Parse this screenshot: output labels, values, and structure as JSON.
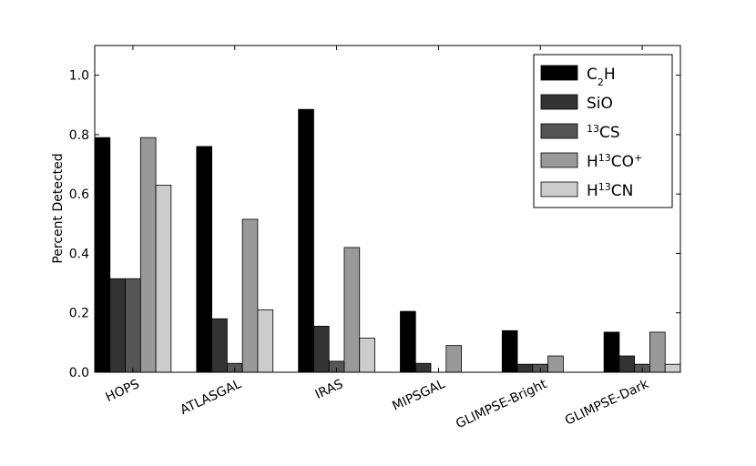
{
  "chart_data": {
    "type": "bar",
    "title": "",
    "xlabel": "",
    "ylabel": "Percent Detected",
    "ylim": [
      0,
      1.1
    ],
    "yticks": [
      0.0,
      0.2,
      0.4,
      0.6,
      0.8,
      1.0
    ],
    "ytick_labels": [
      "0.0",
      "0.2",
      "0.4",
      "0.6",
      "0.8",
      "1.0"
    ],
    "grid": false,
    "legend": "top-right",
    "categories": [
      "HOPS",
      "ATLASGAL",
      "IRAS",
      "MIPSGAL",
      "GLIMPSE-Bright",
      "GLIMPSE-Dark"
    ],
    "series": [
      {
        "name": "C₂H",
        "base": "C",
        "sub": "2",
        "suffix": "H",
        "color": "#000000",
        "values": [
          0.79,
          0.76,
          0.885,
          0.205,
          0.14,
          0.135
        ]
      },
      {
        "name": "SiO",
        "base": "SiO",
        "color": "#333333",
        "values": [
          0.315,
          0.18,
          0.155,
          0.03,
          0.027,
          0.055
        ]
      },
      {
        "name": "¹³CS",
        "pre_sup": "13",
        "base": "CS",
        "color": "#555555",
        "values": [
          0.315,
          0.03,
          0.037,
          0.0,
          0.027,
          0.027
        ]
      },
      {
        "name": "H¹³CO⁺",
        "base": "H",
        "sup": "13",
        "suffix": "CO",
        "suffix_sup": "+",
        "color": "#999999",
        "values": [
          0.79,
          0.515,
          0.42,
          0.09,
          0.055,
          0.135
        ]
      },
      {
        "name": "H¹³CN",
        "base": "H",
        "sup": "13",
        "suffix": "CN",
        "color": "#cccccc",
        "values": [
          0.63,
          0.21,
          0.115,
          0.0,
          0.0,
          0.027
        ]
      }
    ]
  }
}
